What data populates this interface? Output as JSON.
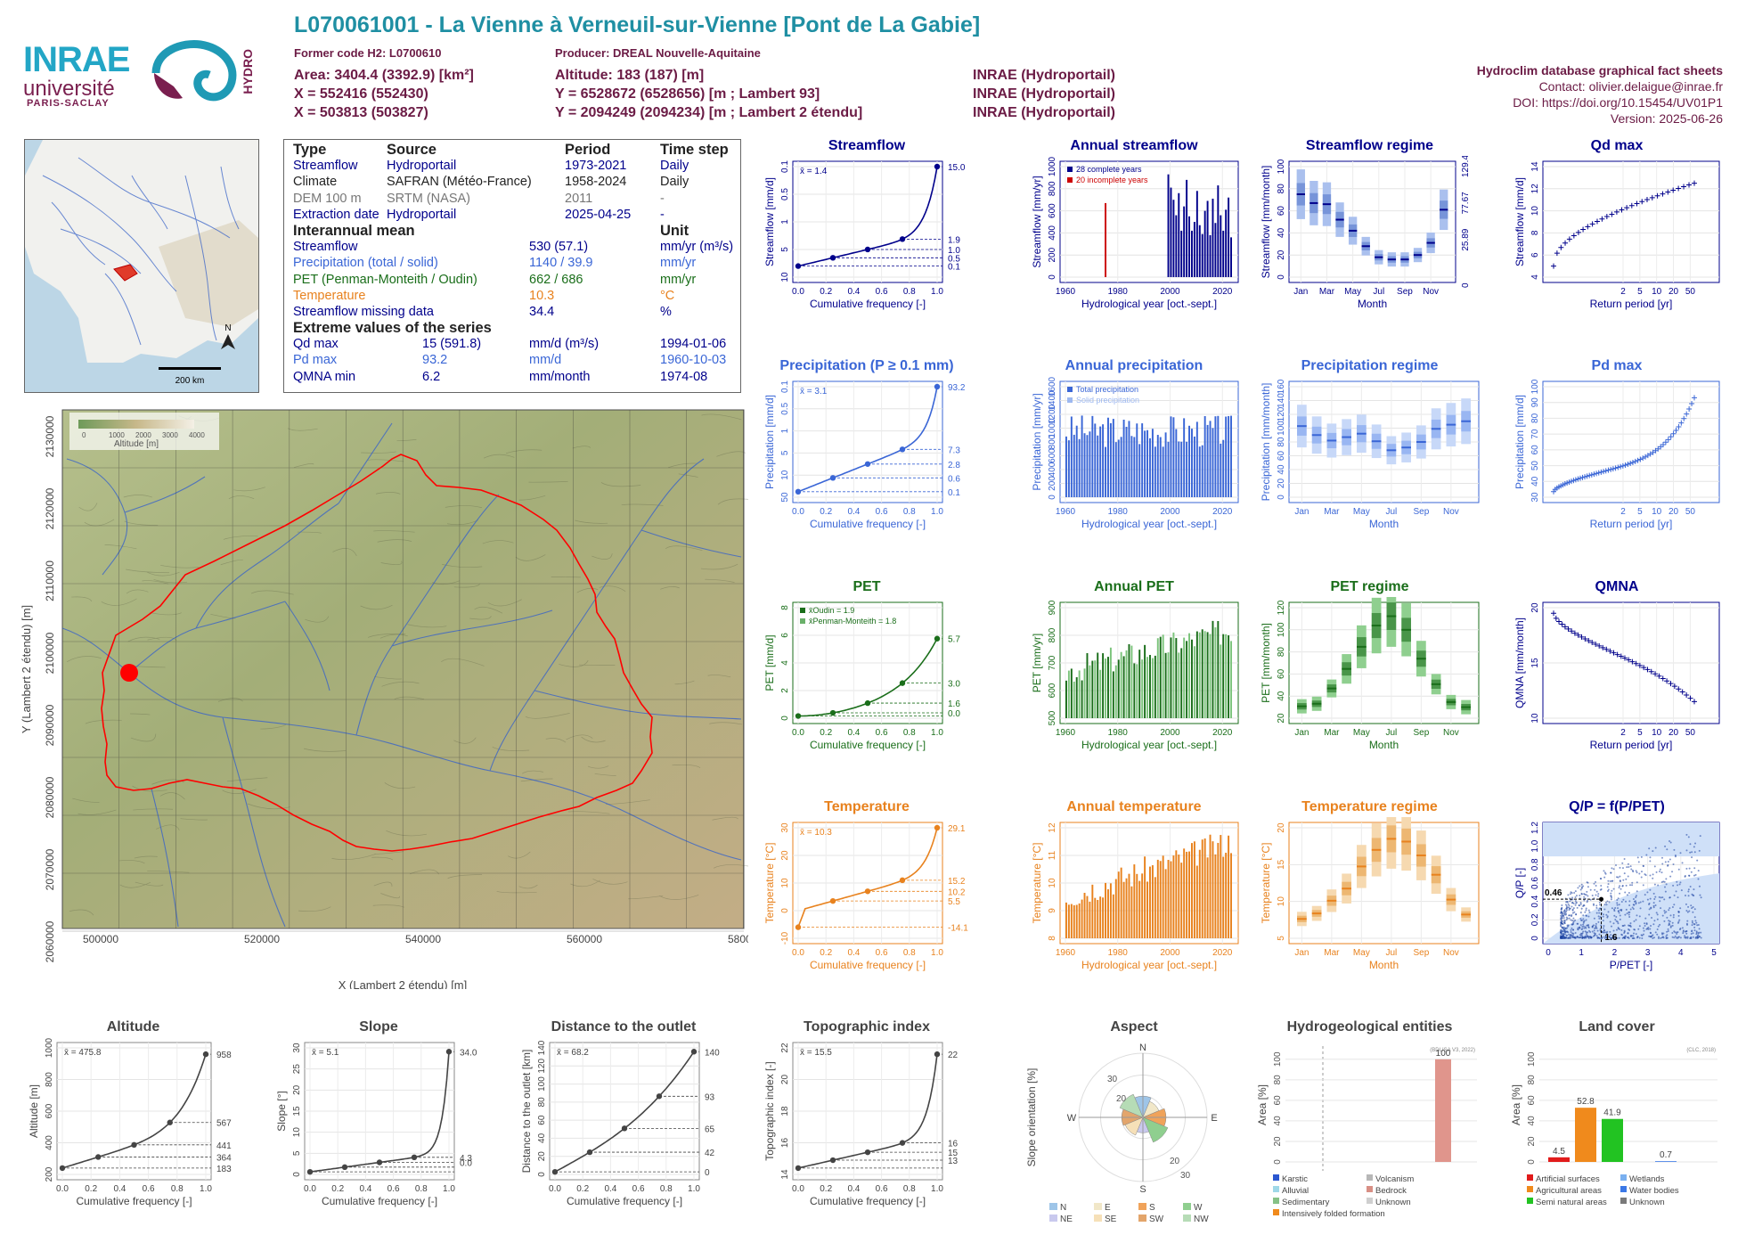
{
  "header": {
    "title": "L070061001 - La Vienne à Verneuil-sur-Vienne [Pont de La Gabie]",
    "former_code": "Former code H2: L0700610",
    "producer": "Producer: DREAL Nouvelle-Aquitaine",
    "area": "Area: 3404.4 (3392.9) [km²]",
    "altitude": "Altitude: 183 (187) [m]",
    "x93": "X = 552416 (552430)",
    "y93": "Y = 6528672 (6528656) [m ; Lambert 93]",
    "src1": "INRAE (Hydroportail)",
    "x2": "X = 503813 (503827)",
    "y2": "Y = 2094249 (2094234) [m ; Lambert 2 étendu]",
    "src2": "INRAE (Hydroportail)",
    "src3": "INRAE (Hydroportail)",
    "db": "Hydroclim database graphical fact sheets",
    "contact": "Contact: olivier.delaigue@inrae.fr",
    "doi": "DOI: https://doi.org/10.15454/UV01P1",
    "version": "Version: 2025-06-26"
  },
  "logos": {
    "inrae": "INRAE",
    "universite": "université",
    "paris_saclay": "PARIS-SACLAY",
    "hydro": "HYDRO"
  },
  "colors": {
    "streamflow": "#00008b",
    "precip": "#3a66d6",
    "pet": "#1a6e1a",
    "temp": "#e8821e",
    "title_teal": "#1f8fa3",
    "header_purple": "#6b1b45"
  },
  "info_table": {
    "head": [
      "Type",
      "Source",
      "Period",
      "Time step"
    ],
    "rows": [
      [
        "Streamflow",
        "Hydroportail",
        "1973-2021",
        "Daily"
      ],
      [
        "Climate",
        "SAFRAN (Météo-France)",
        "1958-2024",
        "Daily"
      ],
      [
        "DEM 100 m",
        "SRTM (NASA)",
        "2011",
        "-"
      ],
      [
        "Extraction date",
        "Hydroportail",
        "2025-04-25",
        "-"
      ]
    ],
    "mean_head": "Interannual mean",
    "unit_head": "Unit",
    "mean_rows": [
      [
        "Streamflow",
        "530 (57.1)",
        "mm/yr (m³/s)"
      ],
      [
        "Precipitation (total / solid)",
        "1140 / 39.9",
        "mm/yr"
      ],
      [
        "PET (Penman-Monteith / Oudin)",
        "662 / 686",
        "mm/yr"
      ],
      [
        "Temperature",
        "10.3",
        "°C"
      ],
      [
        "Streamflow missing data",
        "34.4",
        "%"
      ]
    ],
    "ext_head": "Extreme values of the series",
    "ext_rows": [
      [
        "Qd max",
        "15 (591.8)",
        "mm/d (m³/s)",
        "1994-01-06"
      ],
      [
        "Pd max",
        "93.2",
        "mm/d",
        "1960-10-03"
      ],
      [
        "QMNA min",
        "6.2",
        "mm/month",
        "1974-08"
      ]
    ]
  },
  "map_small": {
    "scale": "200 km",
    "north": "N"
  },
  "map_big": {
    "xlabel": "X (Lambert 2 étendu) [m]",
    "ylabel": "Y (Lambert 2 étendu) [m]",
    "xticks": [
      "500000",
      "520000",
      "540000",
      "560000",
      "580000"
    ],
    "yticks": [
      "2130000",
      "2120000",
      "2110000",
      "2100000",
      "2090000",
      "2080000",
      "2070000",
      "2060000"
    ],
    "legend_title": "Altitude [m]",
    "legend_ticks": [
      "0",
      "1000",
      "2000",
      "3000",
      "4000"
    ]
  },
  "chart_data": [
    {
      "id": "streamflow",
      "type": "line",
      "title": "Streamflow",
      "xlabel": "Cumulative frequency [-]",
      "ylabel": "Streamflow [mm/d]",
      "mean": "x̄ = 1.4",
      "log": true,
      "ylim": [
        0.1,
        15
      ],
      "x": [
        0,
        0.02,
        0.05,
        0.1,
        0.25,
        0.5,
        0.75,
        0.9,
        0.95,
        0.99,
        1
      ],
      "y": [
        0.1,
        0.3,
        0.38,
        0.45,
        0.5,
        1.0,
        1.9,
        3.2,
        4.5,
        8,
        15
      ],
      "marks": [
        {
          "x": 0,
          "y": 0.1
        },
        {
          "x": 0.25,
          "y": 0.5
        },
        {
          "x": 0.5,
          "y": 1.0
        },
        {
          "x": 0.75,
          "y": 1.9
        },
        {
          "x": 1,
          "y": 15
        }
      ],
      "right": [
        "15.0",
        "1.9",
        "1.0",
        "0.5",
        "0.1"
      ],
      "yticks": [
        "10",
        "5",
        "1",
        "0.5",
        "0.1"
      ]
    },
    {
      "id": "annual_streamflow",
      "type": "bar",
      "title": "Annual streamflow",
      "xlabel": "Hydrological year [oct.-sept.]",
      "ylabel": "Streamflow [mm/yr]",
      "ylim": [
        0,
        1000
      ],
      "legend": [
        "28 complete years",
        "20 incomplete years"
      ],
      "xticks": [
        "1960",
        "1980",
        "2000",
        "2020"
      ],
      "yticks": [
        "0",
        "200",
        "400",
        "600",
        "800",
        "1000"
      ],
      "values": [
        0,
        0,
        0,
        0,
        0,
        0,
        0,
        0,
        0,
        0,
        0,
        0,
        0,
        0,
        0,
        670,
        0,
        0,
        0,
        0,
        0,
        0,
        0,
        0,
        0,
        0,
        0,
        0,
        0,
        0,
        0,
        0,
        0,
        0,
        0,
        0,
        0,
        0,
        0,
        930,
        810,
        700,
        560,
        760,
        420,
        640,
        880,
        550,
        420,
        500,
        780,
        470,
        390,
        600,
        690,
        380,
        710,
        490,
        830,
        560,
        420,
        610,
        720,
        360
      ]
    },
    {
      "id": "streamflow_regime",
      "type": "bar",
      "title": "Streamflow regime",
      "xlabel": "Month",
      "ylabel": "Streamflow [mm/month]",
      "ylim": [
        0,
        100
      ],
      "categories": [
        "Jan",
        "Feb",
        "Mar",
        "Apr",
        "May",
        "Jun",
        "Jul",
        "Aug",
        "Sep",
        "Oct",
        "Nov",
        "Dec"
      ],
      "values": [
        75,
        67,
        66,
        52,
        42,
        28,
        18,
        16,
        16,
        20,
        31,
        61
      ],
      "right": [
        "129.46",
        "77.67",
        "25.89",
        "0"
      ],
      "yticks": [
        "0",
        "20",
        "40",
        "60",
        "80",
        "100"
      ],
      "xticks": [
        "Jan",
        "Mar",
        "May",
        "Jul",
        "Sep",
        "Nov"
      ]
    },
    {
      "id": "qd_max",
      "type": "scatter",
      "title": "Qd max",
      "xlabel": "Return period [yr]",
      "ylabel": "Streamflow [mm/d]",
      "ylim": [
        2,
        14
      ],
      "yticks": [
        "4",
        "6",
        "8",
        "10",
        "12",
        "14"
      ],
      "xticks": [
        "2",
        "5",
        "10",
        "20",
        "50"
      ]
    },
    {
      "id": "precipitation",
      "type": "line",
      "title": "Precipitation (P ≥ 0.1 mm)",
      "xlabel": "Cumulative frequency [-]",
      "ylabel": "Precipitation [mm/d]",
      "mean": "x̄ = 3.1",
      "log": true,
      "right": [
        "93.2",
        "7.3",
        "2.8",
        "0.6",
        "0.1"
      ],
      "yticks": [
        "50",
        "10",
        "5",
        "1",
        "0.5",
        "0.1"
      ]
    },
    {
      "id": "annual_precip",
      "type": "bar",
      "title": "Annual precipitation",
      "xlabel": "Hydrological year [oct.-sept.]",
      "ylabel": "Precipitation [mm/yr]",
      "legend": [
        "Total precipitation",
        "Solid precipitation"
      ],
      "xticks": [
        "1960",
        "1980",
        "2000",
        "2020"
      ],
      "yticks": [
        "0",
        "200",
        "400",
        "600",
        "800",
        "1000",
        "1200",
        "1400",
        "1600"
      ]
    },
    {
      "id": "precip_regime",
      "type": "bar",
      "title": "Precipitation regime",
      "xlabel": "Month",
      "ylabel": "Precipitation [mm/month]",
      "ylim": [
        0,
        160
      ],
      "categories": [
        "Jan",
        "Feb",
        "Mar",
        "Apr",
        "May",
        "Jun",
        "Jul",
        "Aug",
        "Sep",
        "Oct",
        "Nov",
        "Dec"
      ],
      "values": [
        103,
        90,
        82,
        87,
        92,
        81,
        68,
        72,
        80,
        99,
        105,
        110
      ],
      "yticks": [
        "0",
        "20",
        "40",
        "60",
        "80",
        "100",
        "120",
        "140",
        "160"
      ],
      "xticks": [
        "Jan",
        "Mar",
        "May",
        "Jul",
        "Sep",
        "Nov"
      ]
    },
    {
      "id": "pd_max",
      "type": "scatter",
      "title": "Pd max",
      "xlabel": "Return period [yr]",
      "ylabel": "Precipitation [mm/d]",
      "yticks": [
        "30",
        "40",
        "50",
        "60",
        "70",
        "80",
        "90",
        "100"
      ],
      "xticks": [
        "2",
        "5",
        "10",
        "20",
        "50"
      ]
    },
    {
      "id": "pet",
      "type": "line",
      "title": "PET",
      "xlabel": "Cumulative frequency [-]",
      "ylabel": "PET [mm/d]",
      "legend": [
        "x̄Oudin = 1.9",
        "x̄Penman-Monteith = 1.8"
      ],
      "right": [
        "5.7",
        "3.0",
        "1.6",
        "0.0"
      ],
      "yticks": [
        "0",
        "2",
        "4",
        "6",
        "8"
      ]
    },
    {
      "id": "annual_pet",
      "type": "bar",
      "title": "Annual PET",
      "xlabel": "Hydrological year [oct.-sept.]",
      "ylabel": "PET [mm/yr]",
      "xticks": [
        "1960",
        "1980",
        "2000",
        "2020"
      ],
      "yticks": [
        "500",
        "600",
        "700",
        "800",
        "900"
      ]
    },
    {
      "id": "pet_regime",
      "type": "bar",
      "title": "PET regime",
      "xlabel": "Month",
      "ylabel": "PET [mm/month]",
      "categories": [
        "Jan",
        "Feb",
        "Mar",
        "Apr",
        "May",
        "Jun",
        "Jul",
        "Aug",
        "Sep",
        "Oct",
        "Nov",
        "Dec"
      ],
      "values": [
        14,
        17,
        35,
        58,
        84,
        109,
        120,
        104,
        70,
        40,
        19,
        13
      ],
      "yticks": [
        "20",
        "40",
        "60",
        "80",
        "100",
        "120"
      ],
      "xticks": [
        "Jan",
        "Mar",
        "May",
        "Jul",
        "Sep",
        "Nov"
      ]
    },
    {
      "id": "qmna",
      "type": "scatter",
      "title": "QMNA",
      "xlabel": "Return period [yr]",
      "ylabel": "QMNA [mm/month]",
      "yticks": [
        "10",
        "15",
        "20"
      ],
      "xticks": [
        "2",
        "5",
        "10",
        "20",
        "50"
      ]
    },
    {
      "id": "temperature",
      "type": "line",
      "title": "Temperature",
      "xlabel": "Cumulative frequency [-]",
      "ylabel": "Temperature [°C]",
      "mean": "x̄ = 10.3",
      "right": [
        "29.1",
        "15.2",
        "10.2",
        "5.5",
        "-14.1"
      ],
      "yticks": [
        "-10",
        "0",
        "10",
        "20",
        "30"
      ]
    },
    {
      "id": "annual_temp",
      "type": "bar",
      "title": "Annual temperature",
      "xlabel": "Hydrological year [oct.-sept.]",
      "ylabel": "Temperature [°C]",
      "xticks": [
        "1960",
        "1980",
        "2000",
        "2020"
      ],
      "yticks": [
        "8",
        "9",
        "10",
        "11",
        "12"
      ]
    },
    {
      "id": "temp_regime",
      "type": "bar",
      "title": "Temperature regime",
      "xlabel": "Month",
      "ylabel": "Temperature [°C]",
      "categories": [
        "Jan",
        "Feb",
        "Mar",
        "Apr",
        "May",
        "Jun",
        "Jul",
        "Aug",
        "Sep",
        "Oct",
        "Nov",
        "Dec"
      ],
      "values": [
        3.5,
        4.5,
        6.8,
        9,
        13,
        16,
        18,
        17.5,
        15,
        11.5,
        7,
        4.3
      ],
      "yticks": [
        "5",
        "10",
        "15",
        "20"
      ],
      "xticks": [
        "Jan",
        "Mar",
        "May",
        "Jul",
        "Sep",
        "Nov"
      ]
    },
    {
      "id": "qp",
      "type": "scatter",
      "title": "Q/P = f(P/PET)",
      "xlabel": "P/PET [-]",
      "ylabel": "Q/P [-]",
      "yticks": [
        "0",
        "0.2",
        "0.4",
        "0.6",
        "0.8",
        "1.0",
        "1.2"
      ],
      "xticks": [
        "0",
        "1",
        "2",
        "3",
        "4",
        "5"
      ],
      "labels": [
        "0.46",
        "1.6"
      ]
    },
    {
      "id": "altitude",
      "type": "line",
      "title": "Altitude",
      "xlabel": "Cumulative frequency [-]",
      "ylabel": "Altitude [m]",
      "mean": "x̄ = 475.8",
      "right": [
        "958",
        "567",
        "441",
        "364",
        "183"
      ],
      "yticks": [
        "200",
        "400",
        "600",
        "800",
        "1000"
      ]
    },
    {
      "id": "slope",
      "type": "line",
      "title": "Slope",
      "xlabel": "Cumulative frequency [-]",
      "ylabel": "Slope [°]",
      "mean": "x̄ = 5.1",
      "right": [
        "34.0",
        "4.3",
        "0.0"
      ],
      "yticks": [
        "0",
        "5",
        "10",
        "15",
        "20",
        "25",
        "30"
      ]
    },
    {
      "id": "distance",
      "type": "line",
      "title": "Distance to the outlet",
      "xlabel": "Cumulative frequency [-]",
      "ylabel": "Distance to the outlet [km]",
      "mean": "x̄ = 68.2",
      "right": [
        "140",
        "93",
        "65",
        "42",
        "0"
      ],
      "yticks": [
        "0",
        "20",
        "40",
        "60",
        "80",
        "100",
        "120",
        "140"
      ]
    },
    {
      "id": "topo",
      "type": "line",
      "title": "Topographic index",
      "xlabel": "Cumulative frequency [-]",
      "ylabel": "Topographic index [-]",
      "mean": "x̄ = 15.5",
      "right": [
        "22",
        "16",
        "15",
        "13"
      ],
      "yticks": [
        "14",
        "16",
        "18",
        "20",
        "22"
      ]
    },
    {
      "id": "aspect",
      "type": "pie",
      "title": "Aspect",
      "ylabel": "Slope orientation [%]",
      "legend": [
        "N",
        "E",
        "S",
        "W",
        "NE",
        "SE",
        "SW",
        "NW"
      ]
    },
    {
      "id": "hydrogeo",
      "type": "bar",
      "title": "Hydrogeological entities",
      "ylabel": "Area [%]",
      "source": "(BDLISA V3, 2022)",
      "value_label": "100",
      "legend": [
        "Karstic",
        "Volcanism",
        "Alluvial",
        "Bedrock",
        "Sedimentary",
        "Unknown",
        "Intensively folded formation"
      ],
      "yticks": [
        "0",
        "20",
        "40",
        "60",
        "80",
        "100"
      ]
    },
    {
      "id": "landcover",
      "type": "bar",
      "title": "Land cover",
      "ylabel": "Area [%]",
      "source": "(CLC, 2018)",
      "values": [
        4.5,
        52.8,
        41.9,
        0.7
      ],
      "value_labels": [
        "4.5",
        "52.8",
        "41.9",
        "0.7"
      ],
      "legend": [
        "Artificial surfaces",
        "Wetlands",
        "Agricultural areas",
        "Water bodies",
        "Semi natural areas",
        "Unknown"
      ],
      "yticks": [
        "0",
        "20",
        "40",
        "60",
        "80",
        "100"
      ]
    }
  ]
}
